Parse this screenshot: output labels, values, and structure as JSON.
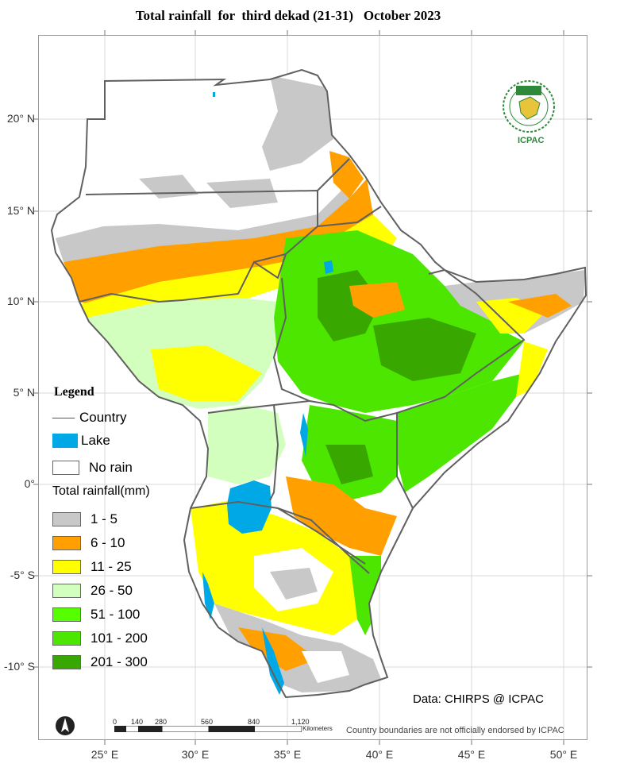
{
  "title": "Total rainfall  for  third dekad (21-31)   October 2023",
  "latitude_labels": [
    "20° N",
    "15° N",
    "10° N",
    "5° N",
    "0°",
    "-5° S",
    "-10° S"
  ],
  "longitude_labels": [
    "25° E",
    "30° E",
    "35° E",
    "40° E",
    "45° E",
    "50° E"
  ],
  "legend": {
    "title": "Legend",
    "country": "Country",
    "lake": "Lake",
    "no_rain": "No rain",
    "rainfall_title": "Total rainfall(mm)",
    "classes": [
      {
        "label": "1 - 5",
        "color": "#c8c8c8"
      },
      {
        "label": "6 - 10",
        "color": "#ff9f00"
      },
      {
        "label": "11 - 25",
        "color": "#ffff00"
      },
      {
        "label": "26 - 50",
        "color": "#d3ffbe"
      },
      {
        "label": "51 - 100",
        "color": "#55ff00"
      },
      {
        "label": "101 - 200",
        "color": "#4ce600"
      },
      {
        "label": "201 - 300",
        "color": "#38a800"
      }
    ],
    "lake_color": "#00a9e6"
  },
  "logo": {
    "top": "IGAD",
    "bottom": "ICPAC"
  },
  "data_credit": "Data: CHIRPS @ ICPAC",
  "scale_bar": {
    "ticks": [
      "0",
      "140",
      "280",
      "560",
      "840",
      "1,120"
    ],
    "unit": "Kilometers"
  },
  "disclaimer": "Country boundaries are not officially endorsed by ICPAC"
}
